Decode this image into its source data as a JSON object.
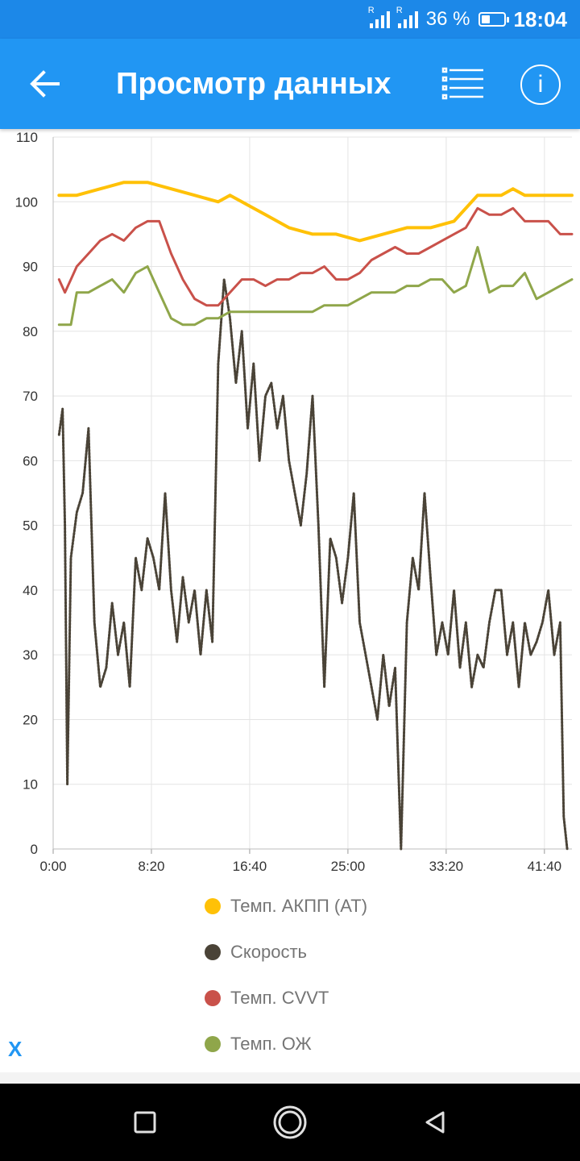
{
  "status_bar": {
    "battery": "36 %",
    "time": "18:04",
    "sim1": "R",
    "sim2": "R"
  },
  "app_bar": {
    "title": "Просмотр данных",
    "back_icon": "arrow-left-icon",
    "list_icon": "list-icon",
    "info_icon": "info-icon",
    "info_glyph": "i"
  },
  "close_label": "X",
  "colors": {
    "primary": "#2196f3",
    "status": "#1c88e8",
    "akpp": "#ffc107",
    "speed": "#4a4337",
    "cvvt": "#c9514a",
    "ozh": "#8fa64a"
  },
  "chart_data": {
    "type": "line",
    "xlabel": "",
    "ylabel": "",
    "ylim": [
      0,
      110
    ],
    "xlim": [
      0,
      44
    ],
    "yticks": [
      "0",
      "10",
      "20",
      "30",
      "40",
      "50",
      "60",
      "70",
      "80",
      "90",
      "100",
      "110"
    ],
    "xticks": [
      "0:00",
      "8:20",
      "16:40",
      "25:00",
      "33:20",
      "41:40"
    ],
    "grid": true,
    "legend_position": "bottom",
    "x_unit": "minutes",
    "series": [
      {
        "name": "Темп. АКПП (AT)",
        "color": "#ffc107",
        "x": [
          0.5,
          2,
          4,
          6,
          8,
          10,
          12,
          14,
          15,
          16,
          18,
          20,
          22,
          24,
          26,
          28,
          30,
          32,
          34,
          36,
          38,
          39,
          40,
          41,
          42,
          43,
          44
        ],
        "values": [
          101,
          101,
          102,
          103,
          103,
          102,
          101,
          100,
          101,
          100,
          98,
          96,
          95,
          95,
          94,
          95,
          96,
          96,
          97,
          101,
          101,
          102,
          101,
          101,
          101,
          101,
          101
        ]
      },
      {
        "name": "Скорость",
        "color": "#4a4337",
        "x": [
          0.5,
          0.8,
          1,
          1.2,
          1.5,
          2,
          2.5,
          3,
          3.5,
          4,
          4.5,
          5,
          5.5,
          6,
          6.5,
          7,
          7.5,
          8,
          8.5,
          9,
          9.5,
          10,
          10.5,
          11,
          11.5,
          12,
          12.5,
          13,
          13.5,
          14,
          14.5,
          15,
          15.5,
          16,
          16.5,
          17,
          17.5,
          18,
          18.5,
          19,
          19.5,
          20,
          20.5,
          21,
          21.5,
          22,
          22.5,
          23,
          23.5,
          24,
          24.5,
          25,
          25.5,
          26,
          26.5,
          27,
          27.5,
          28,
          28.5,
          29,
          29.5,
          30,
          30.5,
          31,
          31.5,
          32,
          32.5,
          33,
          33.5,
          34,
          34.5,
          35,
          35.5,
          36,
          36.5,
          37,
          37.5,
          38,
          38.5,
          39,
          39.5,
          40,
          40.5,
          41,
          41.5,
          42,
          42.5,
          43,
          43.3,
          43.6
        ],
        "values": [
          64,
          68,
          50,
          10,
          45,
          52,
          55,
          65,
          35,
          25,
          28,
          38,
          30,
          35,
          25,
          45,
          40,
          48,
          45,
          40,
          55,
          40,
          32,
          42,
          35,
          40,
          30,
          40,
          32,
          75,
          88,
          82,
          72,
          80,
          65,
          75,
          60,
          70,
          72,
          65,
          70,
          60,
          55,
          50,
          58,
          70,
          50,
          25,
          48,
          45,
          38,
          45,
          55,
          35,
          30,
          25,
          20,
          30,
          22,
          28,
          0,
          35,
          45,
          40,
          55,
          42,
          30,
          35,
          30,
          40,
          28,
          35,
          25,
          30,
          28,
          35,
          40,
          40,
          30,
          35,
          25,
          35,
          30,
          32,
          35,
          40,
          30,
          35,
          5,
          0
        ]
      },
      {
        "name": "Темп. CVVT",
        "color": "#c9514a",
        "x": [
          0.5,
          1,
          1.5,
          2,
          3,
          4,
          5,
          6,
          7,
          8,
          9,
          10,
          11,
          12,
          13,
          14,
          15,
          16,
          17,
          18,
          19,
          20,
          21,
          22,
          23,
          24,
          25,
          26,
          27,
          28,
          29,
          30,
          31,
          32,
          33,
          34,
          35,
          36,
          37,
          38,
          39,
          40,
          41,
          42,
          43,
          44
        ],
        "values": [
          88,
          86,
          88,
          90,
          92,
          94,
          95,
          94,
          96,
          97,
          97,
          92,
          88,
          85,
          84,
          84,
          86,
          88,
          88,
          87,
          88,
          88,
          89,
          89,
          90,
          88,
          88,
          89,
          91,
          92,
          93,
          92,
          92,
          93,
          94,
          95,
          96,
          99,
          98,
          98,
          99,
          97,
          97,
          97,
          95,
          95
        ]
      },
      {
        "name": "Темп. ОЖ",
        "color": "#8fa64a",
        "x": [
          0.5,
          1.5,
          2,
          3,
          4,
          5,
          6,
          7,
          8,
          9,
          10,
          11,
          12,
          13,
          14,
          15,
          16,
          17,
          18,
          19,
          20,
          21,
          22,
          23,
          24,
          25,
          26,
          27,
          28,
          29,
          30,
          31,
          32,
          33,
          34,
          35,
          36,
          37,
          38,
          39,
          40,
          41,
          42,
          43,
          44
        ],
        "values": [
          81,
          81,
          86,
          86,
          87,
          88,
          86,
          89,
          90,
          86,
          82,
          81,
          81,
          82,
          82,
          83,
          83,
          83,
          83,
          83,
          83,
          83,
          83,
          84,
          84,
          84,
          85,
          86,
          86,
          86,
          87,
          87,
          88,
          88,
          86,
          87,
          93,
          86,
          87,
          87,
          89,
          85,
          86,
          87,
          88
        ]
      }
    ]
  },
  "nav": {
    "recent_icon": "square-icon",
    "home_icon": "circle-icon",
    "back_icon": "triangle-back-icon"
  }
}
